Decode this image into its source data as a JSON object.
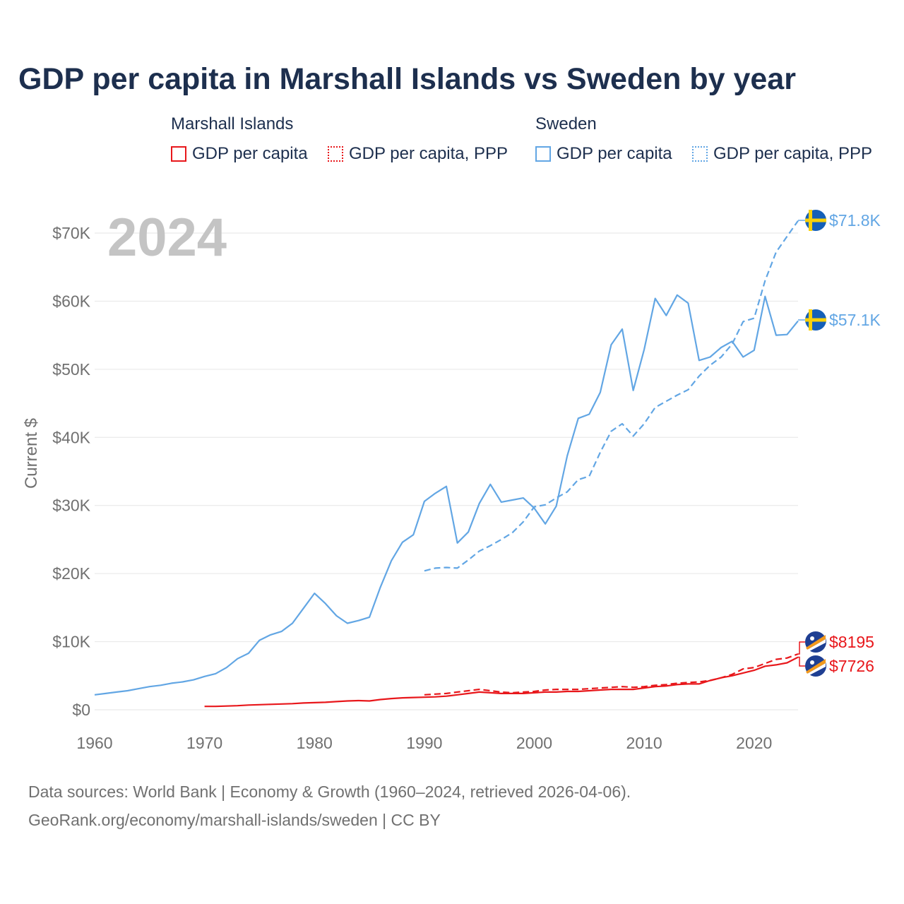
{
  "title": "GDP per capita in Marshall Islands vs Sweden by year",
  "legend": {
    "groups": [
      "Marshall Islands",
      "Sweden"
    ],
    "items": [
      "GDP per capita",
      "GDP per capita, PPP",
      "GDP per capita",
      "GDP per capita, PPP"
    ]
  },
  "year_watermark": "2024",
  "end_labels": {
    "sweden_ppp": "$71.8K",
    "sweden_gdp": "$57.1K",
    "mh_ppp": "$8195",
    "mh_gdp": "$7726"
  },
  "footer": {
    "line1": "Data sources: World Bank | Economy & Growth (1960–2024, retrieved 2026-04-06).",
    "line2": "GeoRank.org/economy/marshall-islands/sweden | CC BY"
  },
  "colors": {
    "marshall": "#e8171b",
    "sweden": "#62a6e4",
    "title": "#1d2f4e"
  },
  "chart_data": {
    "type": "line",
    "title": "GDP per capita in Marshall Islands vs Sweden by year",
    "xlabel": "",
    "ylabel": "Current $",
    "xlim": [
      1960,
      2024
    ],
    "ylim": [
      0,
      72000
    ],
    "x_ticks": [
      1960,
      1970,
      1980,
      1990,
      2000,
      2010,
      2020
    ],
    "x_tick_labels": [
      "1960",
      "1970",
      "1980",
      "1990",
      "2000",
      "2010",
      "2020"
    ],
    "y_ticks": [
      0,
      10000,
      20000,
      30000,
      40000,
      50000,
      60000,
      70000
    ],
    "y_tick_labels": [
      "$0",
      "$10K",
      "$20K",
      "$30K",
      "$40K",
      "$50K",
      "$60K",
      "$70K"
    ],
    "grid": true,
    "series": [
      {
        "name": "Sweden — GDP per capita",
        "country": "Sweden",
        "style": "solid",
        "start": 1960,
        "values": [
          2200,
          2400,
          2600,
          2800,
          3100,
          3400,
          3600,
          3900,
          4100,
          4400,
          4900,
          5300,
          6200,
          7500,
          8300,
          10200,
          11000,
          11500,
          12700,
          14900,
          17100,
          15600,
          13800,
          12700,
          13100,
          13600,
          18000,
          21900,
          24600,
          25700,
          30600,
          31800,
          32800,
          24500,
          26100,
          30300,
          33100,
          30500,
          30800,
          31100,
          29600,
          27300,
          29900,
          37300,
          42800,
          43400,
          46600,
          53600,
          55900,
          46900,
          52900,
          60400,
          57900,
          60900,
          59700,
          51300,
          51800,
          53200,
          54100,
          51800,
          52800,
          60700,
          55000,
          55100,
          57100
        ]
      },
      {
        "name": "Sweden — GDP per capita, PPP",
        "country": "Sweden",
        "style": "dashed",
        "start": 1990,
        "values": [
          20400,
          20800,
          20900,
          20800,
          22000,
          23300,
          24100,
          25000,
          26000,
          27600,
          29800,
          30100,
          31100,
          32000,
          33800,
          34300,
          37800,
          40900,
          42000,
          40200,
          42000,
          44400,
          45300,
          46200,
          47000,
          49000,
          50600,
          51800,
          53700,
          57000,
          57500,
          63000,
          67200,
          69500,
          71800
        ]
      },
      {
        "name": "Marshall Islands — GDP per capita",
        "country": "Marshall Islands",
        "style": "solid",
        "start": 1970,
        "values": [
          500,
          500,
          550,
          600,
          700,
          750,
          800,
          850,
          900,
          1000,
          1050,
          1100,
          1200,
          1300,
          1350,
          1300,
          1500,
          1650,
          1750,
          1800,
          1850,
          1900,
          2000,
          2200,
          2400,
          2600,
          2500,
          2400,
          2400,
          2400,
          2500,
          2600,
          2600,
          2700,
          2700,
          2800,
          2900,
          3000,
          3000,
          3000,
          3200,
          3400,
          3500,
          3700,
          3800,
          3800,
          4300,
          4700,
          5000,
          5400,
          5800,
          6400,
          6600,
          6900,
          7726
        ]
      },
      {
        "name": "Marshall Islands — GDP per capita, PPP",
        "country": "Marshall Islands",
        "style": "dashed",
        "start": 1990,
        "values": [
          2200,
          2300,
          2400,
          2600,
          2800,
          3000,
          2800,
          2600,
          2500,
          2600,
          2700,
          2900,
          3000,
          3000,
          3000,
          3100,
          3200,
          3300,
          3400,
          3300,
          3400,
          3600,
          3700,
          3900,
          4000,
          4100,
          4300,
          4700,
          5200,
          6000,
          6200,
          6800,
          7400,
          7600,
          8195
        ]
      }
    ]
  }
}
